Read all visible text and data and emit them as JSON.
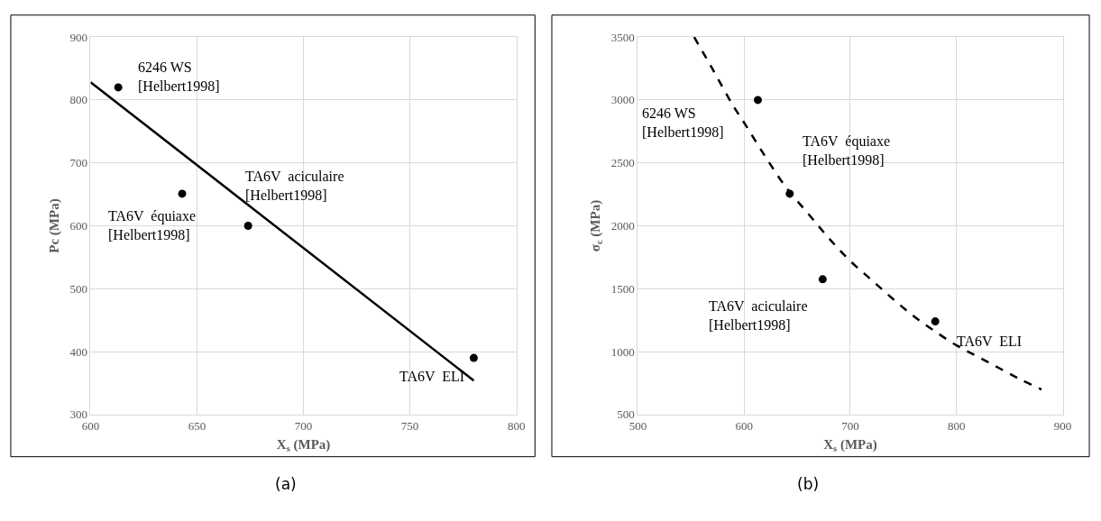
{
  "chart_data": [
    {
      "type": "scatter",
      "xlabel": "X$_{s}$ (MPa)",
      "ylabel": "Pc (MPa)",
      "xlim": [
        600,
        800
      ],
      "xticks": [
        600,
        650,
        700,
        750,
        800
      ],
      "ylim": [
        300,
        900
      ],
      "yticks": [
        300,
        400,
        500,
        600,
        700,
        800,
        900
      ],
      "grid": true,
      "series": [
        {
          "color": "#000000",
          "marker": "circle",
          "x": [
            613,
            643,
            674,
            780
          ],
          "values": [
            820,
            651,
            600,
            390
          ]
        },
        {
          "type": "line",
          "color": "#000000",
          "marker": "none",
          "line_style": "solid",
          "x": [
            600,
            780
          ],
          "values": [
            828,
            354
          ]
        }
      ],
      "annotations": [
        {
          "text": "6246 WS\n[Helbert1998]",
          "x": 613,
          "y": 820
        },
        {
          "text": "TA6V  équiaxe\n[Helbert1998]",
          "x": 643,
          "y": 651
        },
        {
          "text": "TA6V  aciculaire\n[Helbert1998]",
          "x": 674,
          "y": 600
        },
        {
          "text": "TA6V  ELI",
          "x": 780,
          "y": 390
        },
        "(a)"
      ]
    },
    {
      "type": "scatter",
      "xlabel": "X$_{s}$ (MPa)",
      "ylabel": "σ$_{c}$ (MPa)",
      "xlim": [
        500,
        900
      ],
      "xticks": [
        500,
        600,
        700,
        800,
        900
      ],
      "ylim": [
        500,
        3500
      ],
      "yticks": [
        500,
        1000,
        1500,
        2000,
        2500,
        3000,
        3500
      ],
      "grid": true,
      "series": [
        {
          "color": "#000000",
          "marker": "circle",
          "x": [
            613,
            643,
            674,
            780
          ],
          "values": [
            3000,
            2255,
            1575,
            1240
          ]
        },
        {
          "type": "line",
          "color": "#000000",
          "marker": "none",
          "line_style": "dashed",
          "x": [
            553,
            570,
            590,
            600,
            620,
            640,
            660,
            680,
            700,
            720,
            740,
            760,
            780,
            800,
            820,
            840,
            860,
            880
          ],
          "values": [
            3500,
            3250,
            2950,
            2820,
            2550,
            2300,
            2100,
            1900,
            1720,
            1570,
            1420,
            1280,
            1160,
            1050,
            960,
            870,
            780,
            700
          ]
        }
      ],
      "annotations": [
        {
          "text": "6246 WS\n[Helbert1998]",
          "x": 613,
          "y": 3000
        },
        {
          "text": "TA6V  équiaxe\n[Helbert1998]",
          "x": 643,
          "y": 2255
        },
        {
          "text": "TA6V  aciculaire\n[Helbert1998]",
          "x": 674,
          "y": 1575
        },
        {
          "text": "TA6V  ELI",
          "x": 780,
          "y": 1240
        },
        "(b)"
      ]
    }
  ]
}
